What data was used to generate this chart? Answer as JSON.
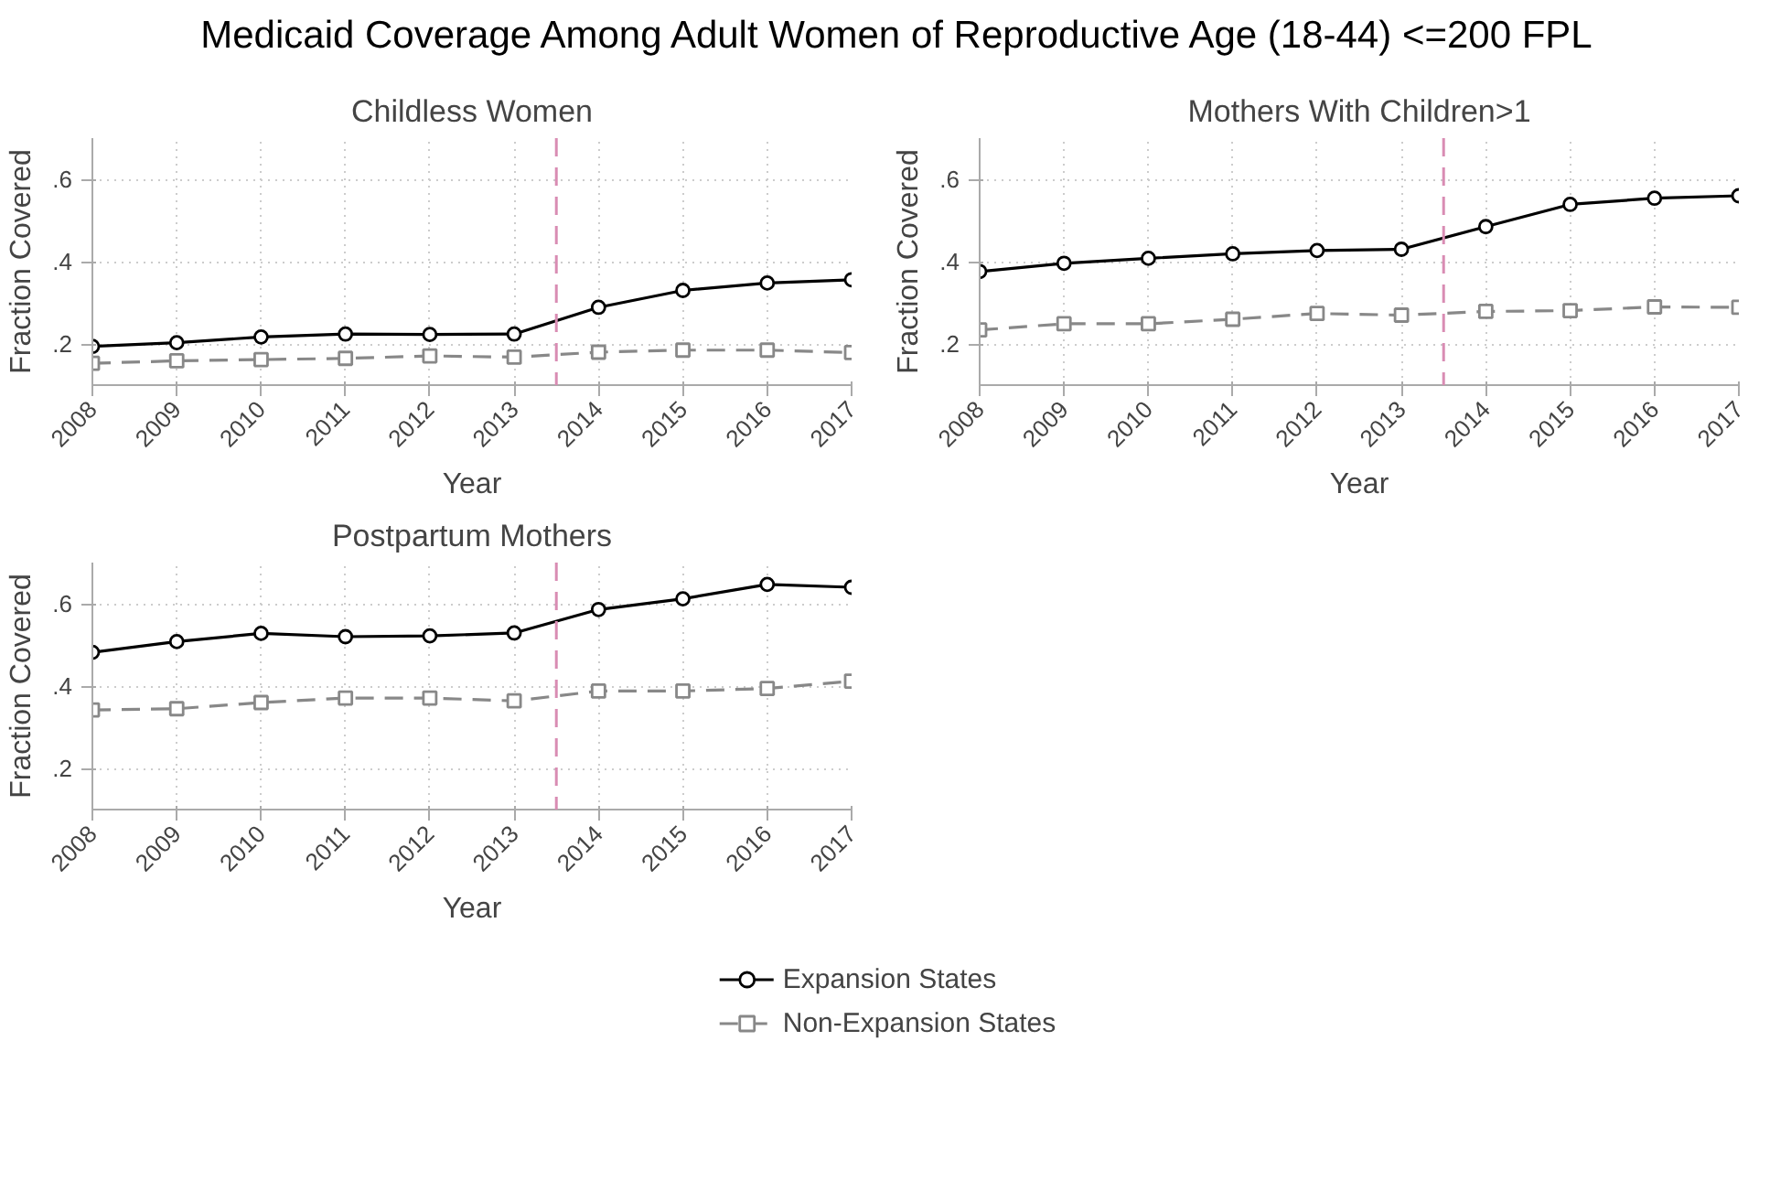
{
  "chart_data": [
    {
      "type": "line",
      "title": "Childless Women",
      "xlabel": "Year",
      "ylabel": "Fraction Covered",
      "annotations": [
        "Medicaid Coverage Among Adult Women of Reproductive Age (18-44) <=200 FPL"
      ],
      "x": [
        2008,
        2009,
        2010,
        2011,
        2012,
        2013,
        2014,
        2015,
        2016,
        2017
      ],
      "xlim": [
        2008,
        2017
      ],
      "xticks": [
        2008,
        2009,
        2010,
        2011,
        2012,
        2013,
        2014,
        2015,
        2016,
        2017
      ],
      "ylim": [
        0.1,
        0.7
      ],
      "yticks": [
        {
          "value": 0.2,
          "label": ".2"
        },
        {
          "value": 0.4,
          "label": ".4"
        },
        {
          "value": 0.6,
          "label": ".6"
        }
      ],
      "grid": true,
      "legend": false,
      "ref_lines": [
        {
          "axis": "x",
          "value": 2013.5,
          "color": "#d98cb3",
          "line_style": "dashed"
        }
      ],
      "series": [
        {
          "color": "#000000",
          "marker": "circle",
          "line_style": "solid",
          "values": [
            0.194,
            0.203,
            0.217,
            0.224,
            0.223,
            0.224,
            0.289,
            0.33,
            0.348,
            0.356
          ]
        },
        {
          "color": "#888888",
          "marker": "square",
          "line_style": "dashed",
          "values": [
            0.153,
            0.159,
            0.162,
            0.165,
            0.171,
            0.168,
            0.18,
            0.185,
            0.185,
            0.179
          ]
        }
      ]
    },
    {
      "type": "line",
      "title": "Mothers With Children>1",
      "xlabel": "Year",
      "ylabel": "Fraction Covered",
      "x": [
        2008,
        2009,
        2010,
        2011,
        2012,
        2013,
        2014,
        2015,
        2016,
        2017
      ],
      "xlim": [
        2008,
        2017
      ],
      "xticks": [
        2008,
        2009,
        2010,
        2011,
        2012,
        2013,
        2014,
        2015,
        2016,
        2017
      ],
      "ylim": [
        0.1,
        0.7
      ],
      "yticks": [
        {
          "value": 0.2,
          "label": ".2"
        },
        {
          "value": 0.4,
          "label": ".4"
        },
        {
          "value": 0.6,
          "label": ".6"
        }
      ],
      "grid": true,
      "legend": false,
      "ref_lines": [
        {
          "axis": "x",
          "value": 2013.5,
          "color": "#d98cb3",
          "line_style": "dashed"
        }
      ],
      "series": [
        {
          "color": "#000000",
          "marker": "circle",
          "line_style": "solid",
          "values": [
            0.376,
            0.396,
            0.408,
            0.419,
            0.427,
            0.43,
            0.485,
            0.539,
            0.554,
            0.56
          ]
        },
        {
          "color": "#888888",
          "marker": "square",
          "line_style": "dashed",
          "values": [
            0.234,
            0.249,
            0.249,
            0.26,
            0.274,
            0.27,
            0.279,
            0.281,
            0.29,
            0.289
          ]
        }
      ]
    },
    {
      "type": "line",
      "title": "Postpartum Mothers",
      "xlabel": "Year",
      "ylabel": "Fraction Covered",
      "x": [
        2008,
        2009,
        2010,
        2011,
        2012,
        2013,
        2014,
        2015,
        2016,
        2017
      ],
      "xlim": [
        2008,
        2017
      ],
      "xticks": [
        2008,
        2009,
        2010,
        2011,
        2012,
        2013,
        2014,
        2015,
        2016,
        2017
      ],
      "ylim": [
        0.1,
        0.7
      ],
      "yticks": [
        {
          "value": 0.2,
          "label": ".2"
        },
        {
          "value": 0.4,
          "label": ".4"
        },
        {
          "value": 0.6,
          "label": ".6"
        }
      ],
      "grid": true,
      "legend": "bottom",
      "ref_lines": [
        {
          "axis": "x",
          "value": 2013.5,
          "color": "#d98cb3",
          "line_style": "dashed"
        }
      ],
      "series": [
        {
          "name": "Expansion States",
          "color": "#000000",
          "marker": "circle",
          "line_style": "solid",
          "values": [
            0.482,
            0.508,
            0.528,
            0.52,
            0.522,
            0.529,
            0.586,
            0.612,
            0.647,
            0.64
          ]
        },
        {
          "name": "Non-Expansion States",
          "color": "#888888",
          "marker": "square",
          "line_style": "dashed",
          "values": [
            0.342,
            0.345,
            0.36,
            0.371,
            0.371,
            0.364,
            0.388,
            0.388,
            0.394,
            0.412
          ]
        }
      ]
    }
  ]
}
